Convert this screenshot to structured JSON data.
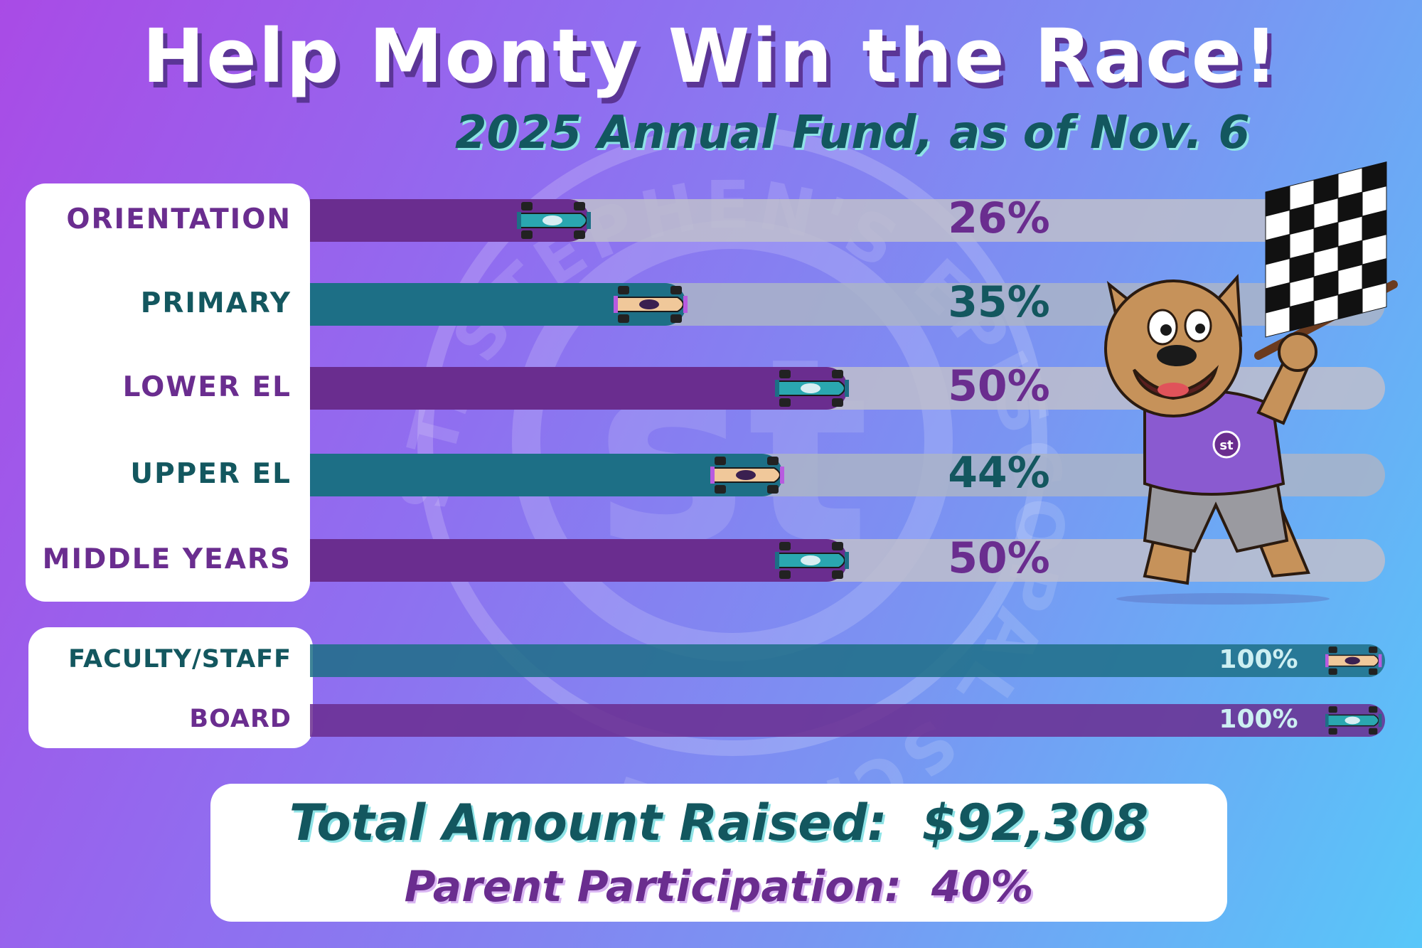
{
  "title": "Help Monty Win the Race!",
  "subtitle": "2025 Annual Fund, as of Nov. 6",
  "watermark_text": "ST. STEPHEN'S EPISCOPAL SCHOOL",
  "colors": {
    "purple": "#6a2d8f",
    "teal": "#1d6f86",
    "track": "#a6a8c4",
    "dark_teal_text": "#13575f"
  },
  "chart_data": {
    "type": "bar",
    "orientation": "horizontal",
    "xlim": [
      0,
      100
    ],
    "categories": [
      "ORIENTATION",
      "PRIMARY",
      "LOWER EL",
      "UPPER EL",
      "MIDDLE YEARS",
      "FACULTY/STAFF",
      "BOARD"
    ],
    "values": [
      26,
      35,
      50,
      44,
      50,
      100,
      100
    ],
    "value_labels": [
      "26%",
      "35%",
      "50%",
      "44%",
      "50%",
      "100%",
      "100%"
    ],
    "bar_colors": [
      "#6a2d8f",
      "#1d6f86",
      "#6a2d8f",
      "#1d6f86",
      "#6a2d8f",
      "#1d6f86",
      "#6a2d8f"
    ],
    "car_styles": [
      "teal",
      "purple",
      "teal",
      "purple",
      "teal",
      "purple",
      "teal"
    ]
  },
  "summary": {
    "total_raised_label": "Total Amount Raised:",
    "total_raised_value": "$92,308",
    "participation_label": "Parent Participation:",
    "participation_value": "40%"
  },
  "icons": {
    "flag": "checkered-flag-icon",
    "mascot": "bulldog-mascot",
    "car": "race-car-icon"
  }
}
